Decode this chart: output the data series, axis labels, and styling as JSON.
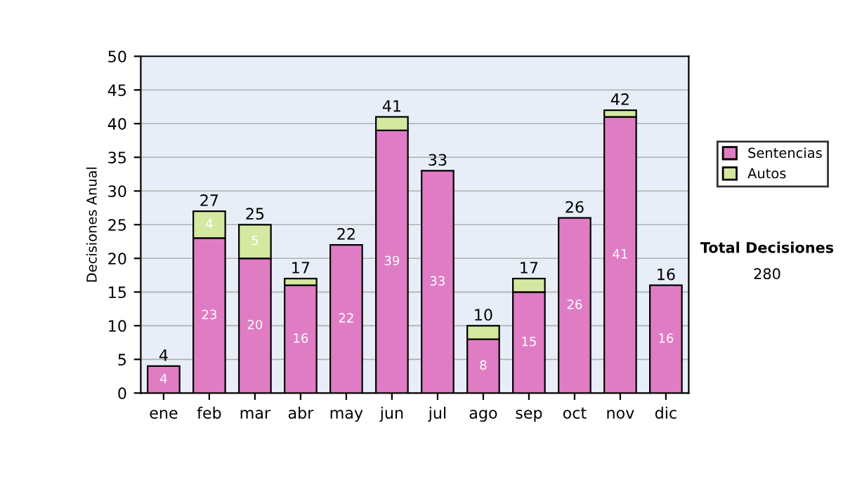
{
  "chart_data": {
    "type": "bar",
    "stacked": true,
    "ylabel": "Decisiones Anual",
    "categories": [
      "ene",
      "feb",
      "mar",
      "abr",
      "may",
      "jun",
      "jul",
      "ago",
      "sep",
      "oct",
      "nov",
      "dic"
    ],
    "series": [
      {
        "name": "Sentencias",
        "color": "#e07cc4",
        "values": [
          4,
          23,
          20,
          16,
          22,
          39,
          33,
          8,
          15,
          26,
          41,
          16
        ],
        "value_labels": [
          "4",
          "23",
          "20",
          "16",
          "22",
          "39",
          "33",
          "8",
          "15",
          "26",
          "41",
          "16"
        ]
      },
      {
        "name": "Autos",
        "color": "#d4e8a0",
        "values": [
          null,
          4,
          5,
          1,
          null,
          2,
          null,
          2,
          2,
          null,
          1,
          null
        ],
        "value_labels": [
          null,
          "4",
          "5",
          null,
          null,
          null,
          null,
          null,
          null,
          null,
          null,
          null
        ]
      }
    ],
    "totals": [
      "4",
      "27",
      "25",
      "17",
      "22",
      "41",
      "33",
      "10",
      "17",
      "26",
      "42",
      "16"
    ],
    "ylim": [
      0,
      50
    ],
    "yticks": [
      0,
      5,
      10,
      15,
      20,
      25,
      30,
      35,
      40,
      45,
      50
    ],
    "grid": "y",
    "legend": "right",
    "annotations": [
      "Total Decisiones",
      "280"
    ]
  }
}
